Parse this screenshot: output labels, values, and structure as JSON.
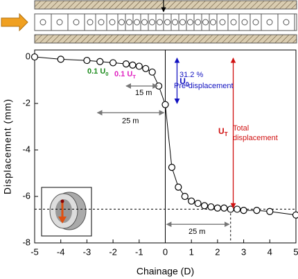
{
  "chart_data": {
    "type": "line",
    "x_label": "Chainage (D)",
    "y_label": "Displacement (mm)",
    "series": [
      {
        "name": "Displacement",
        "color": "#000000",
        "x": [
          -5,
          -4,
          -3,
          -2.5,
          -2,
          -1.5,
          -1.25,
          -1,
          -0.75,
          -0.5,
          -0.25,
          0,
          0.25,
          0.5,
          0.75,
          1,
          1.25,
          1.5,
          1.75,
          2,
          2.25,
          2.5,
          2.75,
          3,
          3.5,
          4,
          5
        ],
        "values": [
          0,
          -0.1,
          -0.15,
          -0.2,
          -0.25,
          -0.3,
          -0.35,
          -0.4,
          -0.5,
          -0.65,
          -1.25,
          -2.05,
          -4.75,
          -5.6,
          -6.0,
          -6.2,
          -6.3,
          -6.4,
          -6.45,
          -6.5,
          -6.5,
          -6.55,
          -6.55,
          -6.6,
          -6.6,
          -6.65,
          -6.8
        ]
      }
    ],
    "xlim": [
      -5,
      5
    ],
    "xticks": [
      -5,
      -4,
      -3,
      -2,
      -1,
      0,
      1,
      2,
      3,
      4,
      5
    ],
    "ylim": [
      -8,
      0.3
    ],
    "yticks": [
      0,
      -2,
      -4,
      -6,
      -8
    ],
    "annotations": {
      "u0_green": {
        "text": "0.1 U",
        "sub": "0",
        "color": "#1a8a1a"
      },
      "ut_pink": {
        "text": "0.1 U",
        "sub": "T",
        "color": "#e020c0"
      },
      "d15": "15 m",
      "d25a": "25 m",
      "d25b": "25 m",
      "u0": {
        "text": "U",
        "sub": "0",
        "color": "#1010c0"
      },
      "pct": "31.2 %",
      "pre": "Pre-displacement",
      "ut": {
        "text": "U",
        "sub": "T",
        "color": "#d01010"
      },
      "total": "Total",
      "totaldisp": "displacement"
    }
  }
}
